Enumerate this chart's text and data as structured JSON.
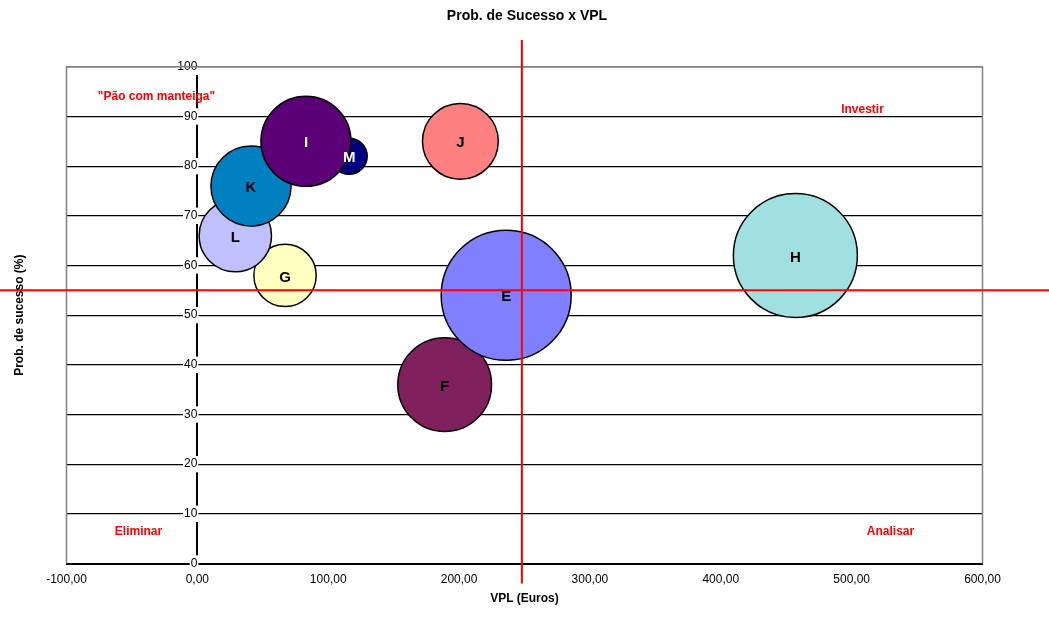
{
  "chart_data": {
    "type": "bubble",
    "title": "Prob. de Sucesso x VPL",
    "xlabel": "VPL (Euros)",
    "ylabel": "Prob. de sucesso (%)",
    "series": [
      {
        "name": "I",
        "color": "#5c0078",
        "x": [
          83
        ],
        "values": [
          85
        ],
        "sizes": [
          0.48
        ]
      },
      {
        "name": "M",
        "color": "#000080",
        "x": [
          116
        ],
        "values": [
          82
        ],
        "sizes": [
          0.077
        ]
      },
      {
        "name": "J",
        "color": "#ff8080",
        "x": [
          201
        ],
        "values": [
          85
        ],
        "sizes": [
          0.34
        ]
      },
      {
        "name": "K",
        "color": "#0080c0",
        "x": [
          41
        ],
        "values": [
          76
        ],
        "sizes": [
          0.38
        ]
      },
      {
        "name": "L",
        "color": "#c0c0ff",
        "x": [
          29
        ],
        "values": [
          66
        ],
        "sizes": [
          0.31
        ]
      },
      {
        "name": "G",
        "color": "#ffffc0",
        "x": [
          67
        ],
        "values": [
          58
        ],
        "sizes": [
          0.23
        ]
      },
      {
        "name": "E",
        "color": "#8080ff",
        "x": [
          236
        ],
        "values": [
          54
        ],
        "sizes": [
          1
        ]
      },
      {
        "name": "F",
        "color": "#80205c",
        "x": [
          189
        ],
        "values": [
          36
        ],
        "sizes": [
          0.52
        ]
      },
      {
        "name": "H",
        "color": "#a0e0e0",
        "x": [
          457
        ],
        "values": [
          62
        ],
        "sizes": [
          0.91
        ]
      }
    ],
    "xlim": [
      -100,
      600
    ],
    "xticks": [
      {
        "value": -100,
        "label": "-100,00"
      },
      {
        "value": 0,
        "label": "0,00"
      },
      {
        "value": 100,
        "label": "100,00"
      },
      {
        "value": 200,
        "label": "200,00"
      },
      {
        "value": 300,
        "label": "300,00"
      },
      {
        "value": 400,
        "label": "400,00"
      },
      {
        "value": 500,
        "label": "500,00"
      },
      {
        "value": 600,
        "label": "600,00"
      }
    ],
    "ylim": [
      0,
      100
    ],
    "yticks": [
      0,
      10,
      20,
      30,
      40,
      50,
      60,
      70,
      80,
      90,
      100
    ],
    "grid": "y",
    "legend": false,
    "ref_lines": [
      {
        "axis": "x",
        "value": 248,
        "color": "#ff0000"
      },
      {
        "axis": "y",
        "value": 55,
        "color": "#ff0000"
      }
    ],
    "annotations": [
      "\"Pão com manteiga\"",
      "Investir",
      "Eliminar",
      "Analisar"
    ]
  }
}
